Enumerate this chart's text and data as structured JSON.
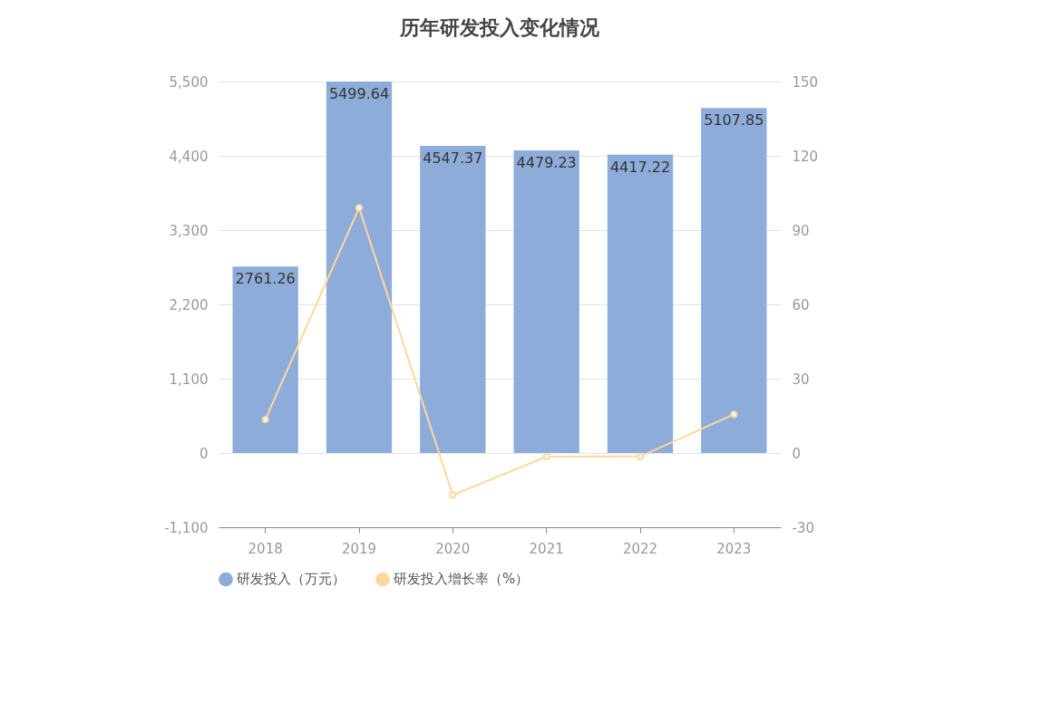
{
  "chart_data": {
    "type": "bar",
    "title": "历年研发投入变化情况",
    "categories": [
      "2018",
      "2019",
      "2020",
      "2021",
      "2022",
      "2023"
    ],
    "series": [
      {
        "name": "研发投入（万元）",
        "color": "#8eacd9",
        "values": [
          2761.26,
          5499.64,
          4547.37,
          4479.23,
          4417.22,
          5107.85
        ],
        "value_labels": [
          "2761.26",
          "5499.64",
          "4547.37",
          "4479.23",
          "4417.22",
          "5107.85"
        ]
      },
      {
        "name": "研发投入增长率（%）",
        "type": "line",
        "axis": "y2",
        "color": "#fdd89c",
        "values": [
          13.5,
          99,
          -17,
          -1.5,
          -1.4,
          15.6
        ]
      }
    ],
    "ylim": [
      -1100,
      5500
    ],
    "yticks": [
      {
        "value": -1100,
        "label": "-1,100"
      },
      0,
      {
        "value": 1100,
        "label": "1,100"
      },
      {
        "value": 2200,
        "label": "2,200"
      },
      {
        "value": 3300,
        "label": "3,300"
      },
      {
        "value": 4400,
        "label": "4,400"
      },
      {
        "value": 5500,
        "label": "5,500"
      }
    ],
    "y2lim": [
      -30,
      150
    ],
    "y2ticks": [
      -30,
      0,
      30,
      60,
      90,
      120,
      150
    ],
    "grid": "y",
    "legend": "bottom",
    "marker": "circle"
  }
}
